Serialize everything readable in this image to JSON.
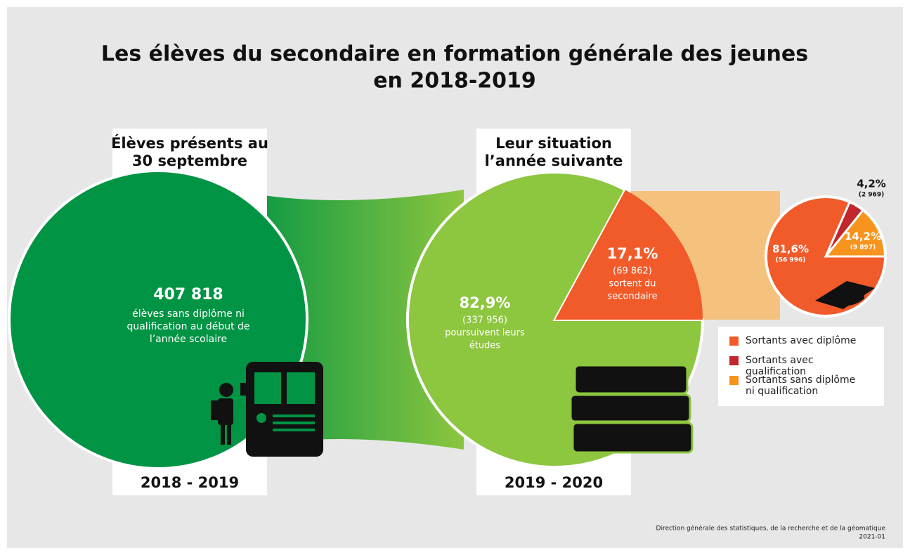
{
  "title": [
    "Les élèves du secondaire en formation générale des jeunes",
    "en 2018-2019"
  ],
  "left": {
    "heading": [
      "Élèves présents au",
      "30 septembre"
    ],
    "total": "407 818",
    "description": [
      "élèves sans diplôme ni",
      "qualification au début de",
      "l’année scolaire"
    ],
    "year": "2018 - 2019"
  },
  "middle": {
    "heading": [
      "Leur situation",
      "l’année suivante"
    ],
    "year": "2019 - 2020",
    "slices": [
      {
        "percent": 82.9,
        "percent_label": "82,9%",
        "count": 337956,
        "count_label": "(337 956)",
        "description": [
          "poursuivent leurs",
          "études"
        ],
        "color": "#8dc63f"
      },
      {
        "percent": 17.1,
        "percent_label": "17,1%",
        "count": 69862,
        "count_label": "(69 862)",
        "description": [
          "sortent du",
          "secondaire"
        ],
        "color": "#f15a29"
      }
    ]
  },
  "right": {
    "slices": [
      {
        "name": "Sortants avec diplôme",
        "percent": 81.6,
        "percent_label": "81,6%",
        "count": 56996,
        "count_label": "(56 996)",
        "color": "#f15a29"
      },
      {
        "name": "Sortants avec qualification",
        "percent": 4.2,
        "percent_label": "4,2%",
        "count": 2969,
        "count_label": "(2 969)",
        "color": "#c1272d"
      },
      {
        "name": "Sortants sans diplôme ni qualification",
        "percent": 14.2,
        "percent_label": "14,2%",
        "count": 9897,
        "count_label": "(9 897)",
        "color": "#f7941d"
      }
    ]
  },
  "source": [
    "Direction générale des statistiques, de la recherche et de la géomatique",
    "2021-01"
  ]
}
